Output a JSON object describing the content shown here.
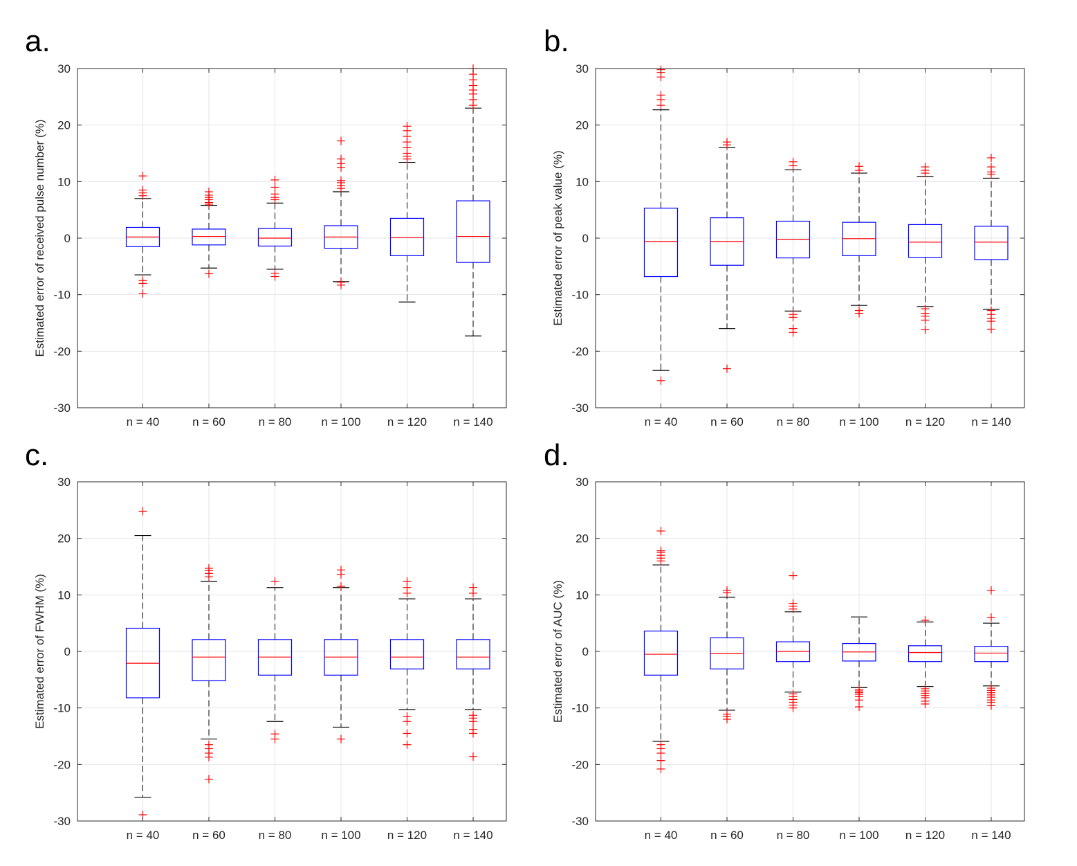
{
  "colors": {
    "box": "#0000ff",
    "median": "#ff0000",
    "outlier": "#ff0000",
    "whisker": "#000000",
    "grid": "#e5e5e5",
    "axes": "#262626"
  },
  "chart_data": [
    {
      "type": "box",
      "panel": "a.",
      "ylabel": "Estimated error of received pulse number (%)",
      "ylim": [
        -30,
        30
      ],
      "yticks": [
        30,
        20,
        10,
        0,
        -10,
        -20,
        -30
      ],
      "grid": true,
      "categories": [
        "n = 40",
        "n = 60",
        "n = 80",
        "n = 100",
        "n = 120",
        "n = 140"
      ],
      "boxes": [
        {
          "q1": -1.5,
          "median": 0.2,
          "q3": 1.9,
          "whisker_low": -6.5,
          "whisker_high": 7.0,
          "outliers": [
            7.5,
            8.0,
            8.5,
            11.0,
            -7.5,
            -8.0,
            -9.8
          ]
        },
        {
          "q1": -1.2,
          "median": 0.3,
          "q3": 1.6,
          "whisker_low": -5.3,
          "whisker_high": 5.8,
          "outliers": [
            6.0,
            6.3,
            6.8,
            7.2,
            7.6,
            8.2,
            -6.3
          ]
        },
        {
          "q1": -1.4,
          "median": 0.0,
          "q3": 1.7,
          "whisker_low": -5.5,
          "whisker_high": 6.2,
          "outliers": [
            6.8,
            7.2,
            7.8,
            9.0,
            10.3,
            -6.2,
            -6.8
          ]
        },
        {
          "q1": -1.8,
          "median": 0.2,
          "q3": 2.2,
          "whisker_low": -7.7,
          "whisker_high": 8.2,
          "outliers": [
            8.8,
            9.3,
            9.8,
            10.2,
            12.5,
            13.2,
            14.0,
            17.2,
            -7.8,
            -8.3
          ]
        },
        {
          "q1": -3.1,
          "median": 0.1,
          "q3": 3.5,
          "whisker_low": -11.3,
          "whisker_high": 13.4,
          "outliers": [
            14.0,
            14.5,
            15.0,
            16.0,
            17.0,
            18.0,
            19.0,
            19.8
          ]
        },
        {
          "q1": -4.3,
          "median": 0.3,
          "q3": 6.6,
          "whisker_low": -17.3,
          "whisker_high": 23.0,
          "outliers": [
            23.5,
            24.5,
            25.5,
            26.2,
            27.0,
            28.0,
            29.0,
            30.0
          ]
        }
      ]
    },
    {
      "type": "box",
      "panel": "b.",
      "ylabel": "Estimated error of peak value (%)",
      "ylim": [
        -30,
        30
      ],
      "yticks": [
        30,
        20,
        10,
        0,
        -10,
        -20,
        -30
      ],
      "grid": true,
      "categories": [
        "n = 40",
        "n = 60",
        "n = 80",
        "n = 100",
        "n = 120",
        "n = 140"
      ],
      "boxes": [
        {
          "q1": -6.8,
          "median": -0.6,
          "q3": 5.3,
          "whisker_low": -23.4,
          "whisker_high": 22.7,
          "outliers": [
            23.5,
            24.5,
            25.3,
            28.5,
            29.3,
            29.8,
            -25.2
          ]
        },
        {
          "q1": -4.8,
          "median": -0.6,
          "q3": 3.6,
          "whisker_low": -16.0,
          "whisker_high": 16.0,
          "outliers": [
            16.5,
            17.0,
            -23.1
          ]
        },
        {
          "q1": -3.5,
          "median": -0.2,
          "q3": 3.0,
          "whisker_low": -12.9,
          "whisker_high": 12.1,
          "outliers": [
            12.8,
            13.5,
            -13.5,
            -14.0,
            -16.0,
            -16.7
          ]
        },
        {
          "q1": -3.1,
          "median": -0.1,
          "q3": 2.8,
          "whisker_low": -11.9,
          "whisker_high": 11.5,
          "outliers": [
            12.0,
            12.7,
            -12.8,
            -13.3
          ]
        },
        {
          "q1": -3.4,
          "median": -0.7,
          "q3": 2.4,
          "whisker_low": -12.1,
          "whisker_high": 10.9,
          "outliers": [
            11.5,
            12.0,
            12.6,
            -12.5,
            -13.3,
            -13.8,
            -14.5,
            -16.2
          ]
        },
        {
          "q1": -3.8,
          "median": -0.7,
          "q3": 2.1,
          "whisker_low": -12.6,
          "whisker_high": 10.6,
          "outliers": [
            11.3,
            11.7,
            12.6,
            14.2,
            -12.8,
            -13.5,
            -14.2,
            -14.7,
            -16.1
          ]
        }
      ]
    },
    {
      "type": "box",
      "panel": "c.",
      "ylabel": "Estimated error of FWHM (%)",
      "ylim": [
        -30,
        30
      ],
      "yticks": [
        30,
        20,
        10,
        0,
        -10,
        -20,
        -30
      ],
      "grid": true,
      "categories": [
        "n = 40",
        "n = 60",
        "n = 80",
        "n = 100",
        "n = 120",
        "n = 140"
      ],
      "boxes": [
        {
          "q1": -8.2,
          "median": -2.1,
          "q3": 4.1,
          "whisker_low": -25.8,
          "whisker_high": 20.5,
          "outliers": [
            24.8,
            -28.9
          ]
        },
        {
          "q1": -5.2,
          "median": -1.0,
          "q3": 2.1,
          "whisker_low": -15.5,
          "whisker_high": 12.4,
          "outliers": [
            13.2,
            13.8,
            14.3,
            14.7,
            -16.5,
            -17.2,
            -18.0,
            -18.7,
            -22.6
          ]
        },
        {
          "q1": -4.2,
          "median": -1.0,
          "q3": 2.1,
          "whisker_low": -12.4,
          "whisker_high": 11.3,
          "outliers": [
            12.4,
            -14.6,
            -15.5
          ]
        },
        {
          "q1": -4.2,
          "median": -1.0,
          "q3": 2.1,
          "whisker_low": -13.4,
          "whisker_high": 11.3,
          "outliers": [
            11.5,
            13.6,
            14.4,
            -15.5
          ]
        },
        {
          "q1": -3.1,
          "median": -1.0,
          "q3": 2.1,
          "whisker_low": -10.3,
          "whisker_high": 9.3,
          "outliers": [
            10.3,
            11.3,
            12.4,
            -11.5,
            -12.4,
            -14.5,
            -16.5
          ]
        },
        {
          "q1": -3.1,
          "median": -1.0,
          "q3": 2.1,
          "whisker_low": -10.3,
          "whisker_high": 9.3,
          "outliers": [
            10.3,
            11.3,
            -11.3,
            -11.8,
            -12.4,
            -13.8,
            -14.5,
            -18.6
          ]
        }
      ]
    },
    {
      "type": "box",
      "panel": "d.",
      "ylabel": "Estimated error of AUC (%)",
      "ylim": [
        -30,
        30
      ],
      "yticks": [
        30,
        20,
        10,
        0,
        -10,
        -20,
        -30
      ],
      "grid": true,
      "categories": [
        "n = 40",
        "n = 60",
        "n = 80",
        "n = 100",
        "n = 120",
        "n = 140"
      ],
      "boxes": [
        {
          "q1": -4.2,
          "median": -0.5,
          "q3": 3.6,
          "whisker_low": -15.9,
          "whisker_high": 15.3,
          "outliers": [
            16.0,
            16.5,
            17.0,
            17.5,
            17.8,
            21.3,
            -16.5,
            -17.2,
            -18.0,
            -19.3,
            -20.8
          ]
        },
        {
          "q1": -3.1,
          "median": -0.4,
          "q3": 2.4,
          "whisker_low": -10.4,
          "whisker_high": 9.6,
          "outliers": [
            10.4,
            10.8,
            -11.1,
            -11.5,
            -12.0
          ]
        },
        {
          "q1": -1.8,
          "median": 0.0,
          "q3": 1.7,
          "whisker_low": -7.2,
          "whisker_high": 7.0,
          "outliers": [
            7.5,
            8.0,
            8.5,
            13.4,
            -7.5,
            -8.0,
            -8.5,
            -9.0,
            -9.5,
            -10.0
          ]
        },
        {
          "q1": -1.7,
          "median": -0.1,
          "q3": 1.4,
          "whisker_low": -6.4,
          "whisker_high": 6.1,
          "outliers": [
            -6.8,
            -7.0,
            -7.3,
            -7.6,
            -8.0,
            -8.6,
            -9.8
          ]
        },
        {
          "q1": -1.8,
          "median": -0.2,
          "q3": 1.0,
          "whisker_low": -6.2,
          "whisker_high": 5.2,
          "outliers": [
            5.5,
            -6.6,
            -7.0,
            -7.4,
            -7.8,
            -8.2,
            -8.8,
            -9.3
          ]
        },
        {
          "q1": -1.8,
          "median": -0.3,
          "q3": 0.9,
          "whisker_low": -6.1,
          "whisker_high": 5.0,
          "outliers": [
            6.0,
            10.8,
            -6.5,
            -6.9,
            -7.3,
            -7.7,
            -8.1,
            -8.6,
            -9.0,
            -9.6
          ]
        }
      ]
    }
  ]
}
